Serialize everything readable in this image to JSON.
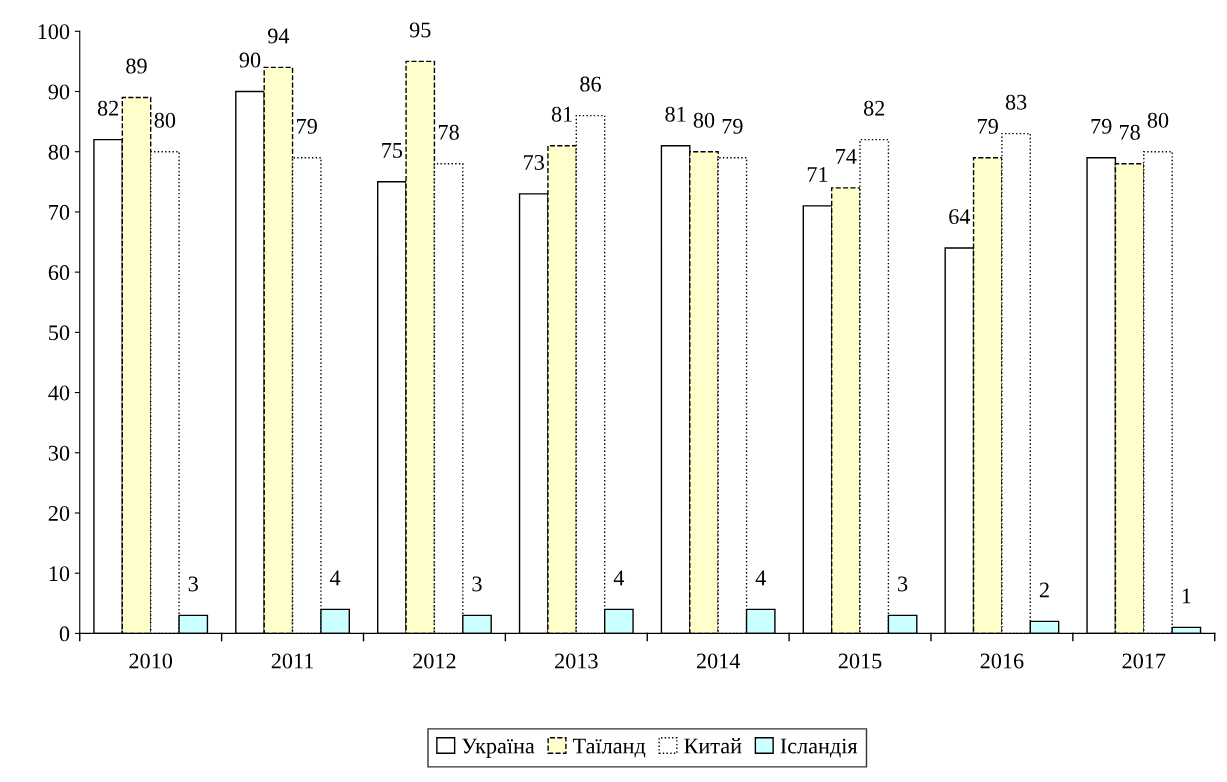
{
  "chart_data": {
    "type": "bar",
    "categories": [
      "2010",
      "2011",
      "2012",
      "2013",
      "2014",
      "2015",
      "2016",
      "2017"
    ],
    "series": [
      {
        "name": "Україна",
        "color": "#ffffff",
        "line_style": "solid",
        "values": [
          82,
          90,
          75,
          73,
          81,
          71,
          64,
          79
        ]
      },
      {
        "name": "Таїланд",
        "color": "#ffffcc",
        "line_style": "dashed",
        "values": [
          89,
          94,
          95,
          81,
          80,
          74,
          79,
          78
        ]
      },
      {
        "name": "Китай",
        "color": "#ffffff",
        "line_style": "dotted",
        "values": [
          80,
          79,
          78,
          86,
          79,
          82,
          83,
          80
        ]
      },
      {
        "name": "Ісландія",
        "color": "#ccffff",
        "line_style": "solid",
        "values": [
          3,
          4,
          3,
          4,
          4,
          3,
          2,
          1
        ]
      }
    ],
    "ylim": [
      0,
      100
    ],
    "yticks": [
      0,
      10,
      20,
      30,
      40,
      50,
      60,
      70,
      80,
      90,
      100
    ],
    "data_labels": true,
    "grid": false,
    "legend": "bottom"
  }
}
